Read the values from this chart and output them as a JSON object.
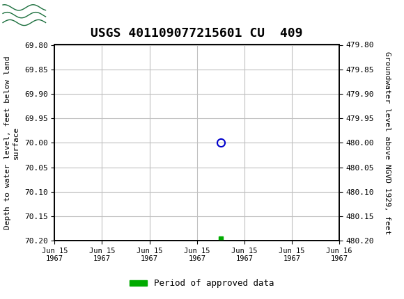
{
  "title": "USGS 401109077215601 CU  409",
  "ylabel_left": "Depth to water level, feet below land\nsurface",
  "ylabel_right": "Groundwater level above NGVD 1929, feet",
  "ylim_left": [
    69.8,
    70.2
  ],
  "ylim_right": [
    479.8,
    480.2
  ],
  "yticks_left": [
    69.8,
    69.85,
    69.9,
    69.95,
    70.0,
    70.05,
    70.1,
    70.15,
    70.2
  ],
  "yticks_right": [
    479.8,
    479.85,
    479.9,
    479.95,
    480.0,
    480.05,
    480.1,
    480.15,
    480.2
  ],
  "ytick_labels_left": [
    "69.80",
    "69.85",
    "69.90",
    "69.95",
    "70.00",
    "70.05",
    "70.10",
    "70.15",
    "70.20"
  ],
  "ytick_labels_right": [
    "479.80",
    "479.85",
    "479.90",
    "479.95",
    "480.00",
    "480.05",
    "480.10",
    "480.15",
    "480.20"
  ],
  "data_point_x": 3.5,
  "data_point_y": 70.0,
  "approved_x": 3.5,
  "approved_y": 70.195,
  "xticklabels": [
    "Jun 15\n1967",
    "Jun 15\n1967",
    "Jun 15\n1967",
    "Jun 15\n1967",
    "Jun 15\n1967",
    "Jun 15\n1967",
    "Jun 16\n1967"
  ],
  "xlim": [
    0,
    6
  ],
  "xtick_positions": [
    0,
    1,
    2,
    3,
    4,
    5,
    6
  ],
  "header_color": "#1a6e3c",
  "background_color": "#ffffff",
  "grid_color": "#c0c0c0",
  "point_color": "#0000cc",
  "approved_color": "#00aa00",
  "title_fontsize": 13,
  "legend_label": "Period of approved data"
}
